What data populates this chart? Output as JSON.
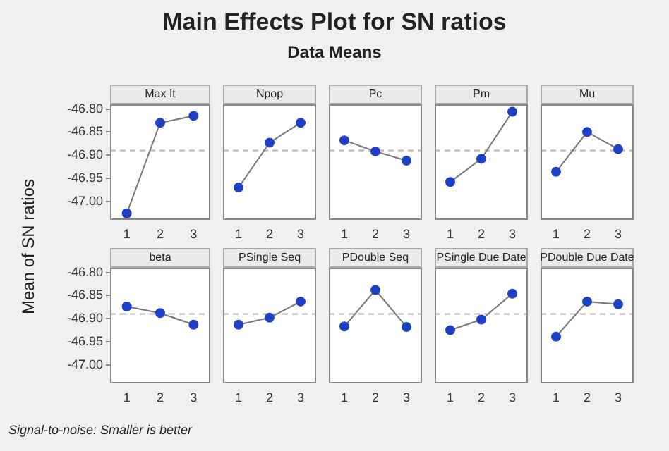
{
  "chart_data": [
    {
      "type": "other",
      "title": "Main Effects Plot for SN ratios",
      "subtitle": "Data Means",
      "ylabel": "Mean of SN ratios",
      "annotations": [
        "Signal-to-noise: Smaller is better"
      ]
    },
    {
      "type": "line",
      "title": "Max It",
      "categories": [
        "1",
        "2",
        "3"
      ],
      "series": [
        {
          "color": "#1f3fc4",
          "values": [
            -47.026,
            -46.83,
            -46.815
          ]
        }
      ],
      "ylim": [
        -47.04,
        -46.79
      ],
      "yticks": [
        {
          "value": -47.0,
          "label": "-47.00"
        },
        {
          "value": -46.95,
          "label": "-46.95"
        },
        {
          "value": -46.9,
          "label": "-46.90"
        },
        {
          "value": -46.85,
          "label": "-46.85"
        },
        {
          "value": -46.8,
          "label": "-46.80"
        }
      ],
      "marker": "circle",
      "ref_lines": [
        {
          "axis": "y",
          "value": -46.89,
          "color": "#b4b4b4",
          "line_style": "dashed"
        }
      ],
      "grid": false,
      "legend": false
    },
    {
      "type": "line",
      "title": "Npop",
      "categories": [
        "1",
        "2",
        "3"
      ],
      "series": [
        {
          "color": "#1f3fc4",
          "values": [
            -46.97,
            -46.873,
            -46.83
          ]
        }
      ],
      "ylim": [
        -47.04,
        -46.79
      ],
      "marker": "circle",
      "ref_lines": [
        {
          "axis": "y",
          "value": -46.89,
          "color": "#b4b4b4",
          "line_style": "dashed"
        }
      ],
      "grid": false,
      "legend": false,
      "tick_labels": "x"
    },
    {
      "type": "line",
      "title": "Pc",
      "categories": [
        "1",
        "2",
        "3"
      ],
      "series": [
        {
          "color": "#1f3fc4",
          "values": [
            -46.868,
            -46.892,
            -46.912
          ]
        }
      ],
      "ylim": [
        -47.04,
        -46.79
      ],
      "marker": "circle",
      "ref_lines": [
        {
          "axis": "y",
          "value": -46.89,
          "color": "#b4b4b4",
          "line_style": "dashed"
        }
      ],
      "grid": false,
      "legend": false,
      "tick_labels": "x"
    },
    {
      "type": "line",
      "title": "Pm",
      "categories": [
        "1",
        "2",
        "3"
      ],
      "series": [
        {
          "color": "#1f3fc4",
          "values": [
            -46.958,
            -46.908,
            -46.806
          ]
        }
      ],
      "ylim": [
        -47.04,
        -46.79
      ],
      "marker": "circle",
      "ref_lines": [
        {
          "axis": "y",
          "value": -46.89,
          "color": "#b4b4b4",
          "line_style": "dashed"
        }
      ],
      "grid": false,
      "legend": false,
      "tick_labels": "x"
    },
    {
      "type": "line",
      "title": "Mu",
      "categories": [
        "1",
        "2",
        "3"
      ],
      "series": [
        {
          "color": "#1f3fc4",
          "values": [
            -46.936,
            -46.85,
            -46.887
          ]
        }
      ],
      "ylim": [
        -47.04,
        -46.79
      ],
      "marker": "circle",
      "ref_lines": [
        {
          "axis": "y",
          "value": -46.89,
          "color": "#b4b4b4",
          "line_style": "dashed"
        }
      ],
      "grid": false,
      "legend": false,
      "tick_labels": "x"
    },
    {
      "type": "line",
      "title": "beta",
      "categories": [
        "1",
        "2",
        "3"
      ],
      "series": [
        {
          "color": "#1f3fc4",
          "values": [
            -46.874,
            -46.888,
            -46.913
          ]
        }
      ],
      "ylim": [
        -47.04,
        -46.79
      ],
      "yticks": [
        {
          "value": -47.0,
          "label": "-47.00"
        },
        {
          "value": -46.95,
          "label": "-46.95"
        },
        {
          "value": -46.9,
          "label": "-46.90"
        },
        {
          "value": -46.85,
          "label": "-46.85"
        },
        {
          "value": -46.8,
          "label": "-46.80"
        }
      ],
      "marker": "circle",
      "ref_lines": [
        {
          "axis": "y",
          "value": -46.89,
          "color": "#b4b4b4",
          "line_style": "dashed"
        }
      ],
      "grid": false,
      "legend": false
    },
    {
      "type": "line",
      "title": "PSingle Seq",
      "categories": [
        "1",
        "2",
        "3"
      ],
      "series": [
        {
          "color": "#1f3fc4",
          "values": [
            -46.913,
            -46.898,
            -46.863
          ]
        }
      ],
      "ylim": [
        -47.04,
        -46.79
      ],
      "marker": "circle",
      "ref_lines": [
        {
          "axis": "y",
          "value": -46.89,
          "color": "#b4b4b4",
          "line_style": "dashed"
        }
      ],
      "grid": false,
      "legend": false,
      "tick_labels": "x"
    },
    {
      "type": "line",
      "title": "PDouble Seq",
      "categories": [
        "1",
        "2",
        "3"
      ],
      "series": [
        {
          "color": "#1f3fc4",
          "values": [
            -46.917,
            -46.838,
            -46.918
          ]
        }
      ],
      "ylim": [
        -47.04,
        -46.79
      ],
      "marker": "circle",
      "ref_lines": [
        {
          "axis": "y",
          "value": -46.89,
          "color": "#b4b4b4",
          "line_style": "dashed"
        }
      ],
      "grid": false,
      "legend": false,
      "tick_labels": "x"
    },
    {
      "type": "line",
      "title": "PSingle Due Date",
      "categories": [
        "1",
        "2",
        "3"
      ],
      "series": [
        {
          "color": "#1f3fc4",
          "values": [
            -46.925,
            -46.902,
            -46.846
          ]
        }
      ],
      "ylim": [
        -47.04,
        -46.79
      ],
      "marker": "circle",
      "ref_lines": [
        {
          "axis": "y",
          "value": -46.89,
          "color": "#b4b4b4",
          "line_style": "dashed"
        }
      ],
      "grid": false,
      "legend": false,
      "tick_labels": "x"
    },
    {
      "type": "line",
      "title": "PDouble Due Date",
      "categories": [
        "1",
        "2",
        "3"
      ],
      "series": [
        {
          "color": "#1f3fc4",
          "values": [
            -46.939,
            -46.863,
            -46.869
          ]
        }
      ],
      "ylim": [
        -47.04,
        -46.79
      ],
      "marker": "circle",
      "ref_lines": [
        {
          "axis": "y",
          "value": -46.89,
          "color": "#b4b4b4",
          "line_style": "dashed"
        }
      ],
      "grid": false,
      "legend": false,
      "tick_labels": "x"
    }
  ]
}
